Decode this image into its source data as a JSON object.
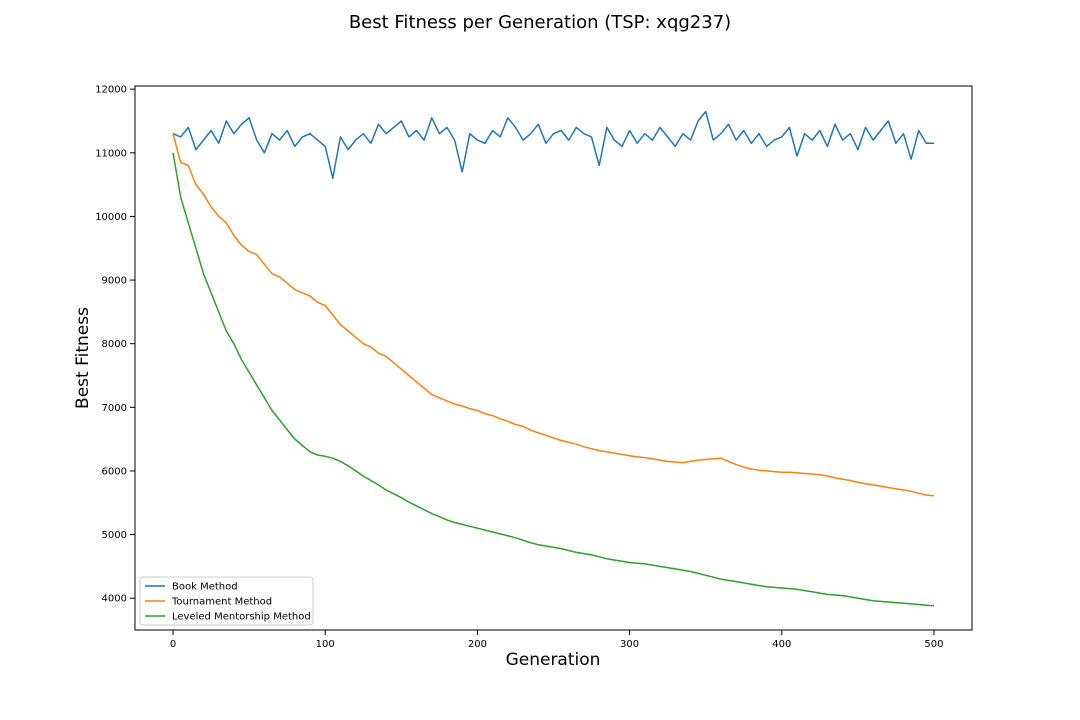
{
  "chart_data": {
    "type": "line",
    "title": "Best Fitness per Generation (TSP: xqg237)",
    "xlabel": "Generation",
    "ylabel": "Best Fitness",
    "xlim": [
      -25,
      525
    ],
    "ylim": [
      3500,
      12050
    ],
    "xticks": [
      0,
      100,
      200,
      300,
      400,
      500
    ],
    "yticks": [
      4000,
      5000,
      6000,
      7000,
      8000,
      9000,
      10000,
      11000,
      12000
    ],
    "grid": false,
    "legend_position": "lower-left",
    "series": [
      {
        "name": "Book Method",
        "color": "#1f77b4",
        "x": [
          0,
          5,
          10,
          15,
          20,
          25,
          30,
          35,
          40,
          45,
          50,
          55,
          60,
          65,
          70,
          75,
          80,
          85,
          90,
          95,
          100,
          105,
          110,
          115,
          120,
          125,
          130,
          135,
          140,
          145,
          150,
          155,
          160,
          165,
          170,
          175,
          180,
          185,
          190,
          195,
          200,
          205,
          210,
          215,
          220,
          225,
          230,
          235,
          240,
          245,
          250,
          255,
          260,
          265,
          270,
          275,
          280,
          285,
          290,
          295,
          300,
          305,
          310,
          315,
          320,
          325,
          330,
          335,
          340,
          345,
          350,
          355,
          360,
          365,
          370,
          375,
          380,
          385,
          390,
          395,
          400,
          405,
          410,
          415,
          420,
          425,
          430,
          435,
          440,
          445,
          450,
          455,
          460,
          465,
          470,
          475,
          480,
          485,
          490,
          495,
          500
        ],
        "values": [
          11300,
          11250,
          11400,
          11050,
          11200,
          11350,
          11150,
          11500,
          11300,
          11450,
          11550,
          11200,
          11000,
          11300,
          11200,
          11350,
          11100,
          11250,
          11300,
          11200,
          11100,
          10600,
          11250,
          11050,
          11200,
          11300,
          11150,
          11450,
          11300,
          11400,
          11500,
          11250,
          11350,
          11200,
          11550,
          11300,
          11400,
          11200,
          10700,
          11300,
          11200,
          11150,
          11350,
          11250,
          11550,
          11400,
          11200,
          11300,
          11450,
          11150,
          11300,
          11350,
          11200,
          11400,
          11300,
          11250,
          10800,
          11400,
          11200,
          11100,
          11350,
          11150,
          11300,
          11200,
          11400,
          11250,
          11100,
          11300,
          11200,
          11500,
          11650,
          11200,
          11300,
          11450,
          11200,
          11350,
          11150,
          11300,
          11100,
          11200,
          11250,
          11400,
          10950,
          11300,
          11200,
          11350,
          11100,
          11450,
          11200,
          11300,
          11050,
          11400,
          11200,
          11350,
          11500,
          11150,
          11300,
          10900,
          11350,
          11150,
          11150
        ]
      },
      {
        "name": "Tournament Method",
        "color": "#ff7f0e",
        "x": [
          0,
          5,
          10,
          15,
          20,
          25,
          30,
          35,
          40,
          45,
          50,
          55,
          60,
          65,
          70,
          75,
          80,
          85,
          90,
          95,
          100,
          105,
          110,
          115,
          120,
          125,
          130,
          135,
          140,
          145,
          150,
          155,
          160,
          165,
          170,
          175,
          180,
          185,
          190,
          195,
          200,
          205,
          210,
          215,
          220,
          225,
          230,
          235,
          240,
          245,
          250,
          255,
          260,
          265,
          270,
          275,
          280,
          285,
          290,
          295,
          300,
          305,
          310,
          315,
          320,
          325,
          330,
          335,
          340,
          345,
          350,
          355,
          360,
          365,
          370,
          375,
          380,
          385,
          390,
          395,
          400,
          405,
          410,
          415,
          420,
          425,
          430,
          435,
          440,
          445,
          450,
          455,
          460,
          465,
          470,
          475,
          480,
          485,
          490,
          495,
          500
        ],
        "values": [
          11300,
          10850,
          10800,
          10500,
          10350,
          10150,
          10000,
          9900,
          9700,
          9550,
          9450,
          9400,
          9250,
          9100,
          9050,
          8950,
          8850,
          8800,
          8750,
          8650,
          8600,
          8450,
          8300,
          8200,
          8100,
          8000,
          7950,
          7850,
          7800,
          7700,
          7600,
          7500,
          7400,
          7300,
          7200,
          7150,
          7100,
          7050,
          7020,
          6980,
          6950,
          6900,
          6870,
          6820,
          6780,
          6730,
          6700,
          6640,
          6600,
          6560,
          6520,
          6480,
          6450,
          6420,
          6380,
          6350,
          6320,
          6300,
          6280,
          6260,
          6240,
          6220,
          6210,
          6190,
          6170,
          6150,
          6140,
          6130,
          6150,
          6170,
          6180,
          6190,
          6200,
          6150,
          6100,
          6060,
          6030,
          6010,
          6000,
          5990,
          5980,
          5980,
          5970,
          5960,
          5950,
          5940,
          5920,
          5890,
          5870,
          5850,
          5820,
          5800,
          5780,
          5760,
          5740,
          5720,
          5700,
          5680,
          5650,
          5620,
          5610
        ]
      },
      {
        "name": "Leveled Mentorship Method",
        "color": "#2ca02c",
        "x": [
          0,
          5,
          10,
          15,
          20,
          25,
          30,
          35,
          40,
          45,
          50,
          55,
          60,
          65,
          70,
          75,
          80,
          85,
          90,
          95,
          100,
          105,
          110,
          115,
          120,
          125,
          130,
          135,
          140,
          145,
          150,
          155,
          160,
          165,
          170,
          175,
          180,
          185,
          190,
          195,
          200,
          205,
          210,
          215,
          220,
          225,
          230,
          235,
          240,
          245,
          250,
          255,
          260,
          265,
          270,
          275,
          280,
          285,
          290,
          295,
          300,
          305,
          310,
          315,
          320,
          325,
          330,
          335,
          340,
          345,
          350,
          355,
          360,
          365,
          370,
          375,
          380,
          385,
          390,
          395,
          400,
          405,
          410,
          415,
          420,
          425,
          430,
          435,
          440,
          445,
          450,
          455,
          460,
          465,
          470,
          475,
          480,
          485,
          490,
          495,
          500
        ],
        "values": [
          11000,
          10300,
          9900,
          9500,
          9100,
          8800,
          8500,
          8200,
          8000,
          7750,
          7550,
          7350,
          7150,
          6950,
          6800,
          6650,
          6500,
          6400,
          6300,
          6250,
          6230,
          6200,
          6150,
          6080,
          6000,
          5920,
          5850,
          5780,
          5700,
          5640,
          5580,
          5510,
          5450,
          5390,
          5330,
          5280,
          5230,
          5190,
          5160,
          5130,
          5100,
          5070,
          5040,
          5010,
          4980,
          4950,
          4910,
          4870,
          4840,
          4820,
          4800,
          4780,
          4750,
          4720,
          4700,
          4680,
          4650,
          4620,
          4600,
          4580,
          4560,
          4550,
          4540,
          4520,
          4500,
          4480,
          4460,
          4440,
          4420,
          4390,
          4360,
          4330,
          4300,
          4280,
          4260,
          4240,
          4220,
          4200,
          4180,
          4170,
          4160,
          4150,
          4140,
          4120,
          4100,
          4080,
          4060,
          4050,
          4040,
          4020,
          4000,
          3980,
          3960,
          3950,
          3940,
          3930,
          3920,
          3910,
          3900,
          3890,
          3880
        ]
      }
    ]
  }
}
